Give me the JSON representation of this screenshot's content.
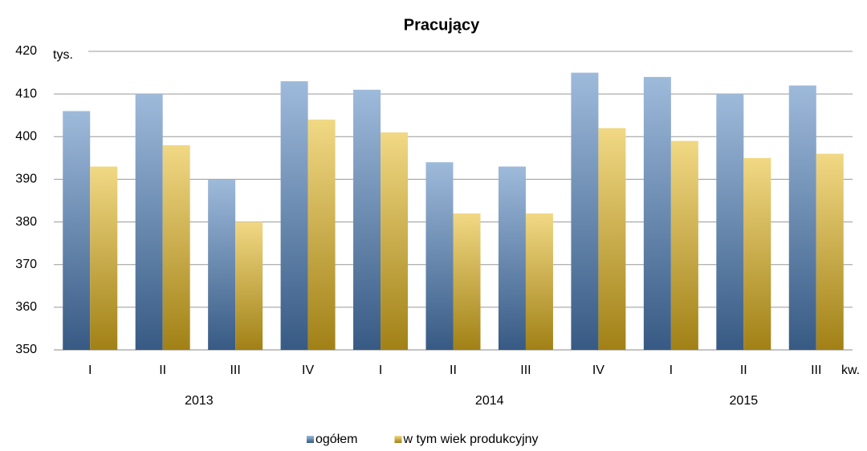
{
  "chart_data": {
    "type": "bar",
    "title": "Pracujący",
    "y_unit": "tys.",
    "x_unit": "kw.",
    "categories": [
      "I",
      "II",
      "III",
      "IV",
      "I",
      "II",
      "III",
      "IV",
      "I",
      "II",
      "III"
    ],
    "category_groups": [
      {
        "label": "2013",
        "count": 4
      },
      {
        "label": "2014",
        "count": 4
      },
      {
        "label": "2015",
        "count": 3
      }
    ],
    "series": [
      {
        "name": "ogółem",
        "color": "#4f81bd",
        "values": [
          406,
          410,
          390,
          413,
          411,
          394,
          393,
          415,
          414,
          410,
          412
        ]
      },
      {
        "name": "w tym wiek produkcyjny",
        "color": "#e6b820",
        "values": [
          393,
          398,
          380,
          404,
          401,
          382,
          382,
          402,
          399,
          395,
          396
        ]
      }
    ],
    "ylim": [
      350,
      420
    ],
    "yticks": [
      350,
      360,
      370,
      380,
      390,
      400,
      410,
      420
    ],
    "grid": true,
    "gradient": true,
    "legend": "bottom"
  }
}
